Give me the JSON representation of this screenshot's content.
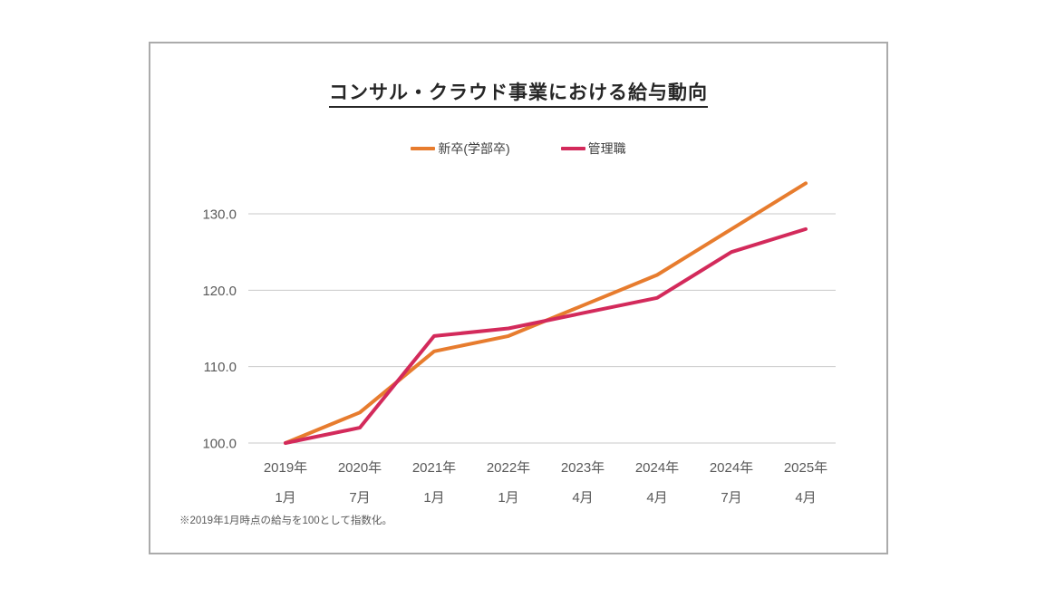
{
  "chart_data": {
    "type": "line",
    "title": "コンサル・クラウド事業における給与動向",
    "footnote": "※2019年1月時点の給与を100として指数化。",
    "categories": [
      [
        "2019年",
        "1月"
      ],
      [
        "2020年",
        "7月"
      ],
      [
        "2021年",
        "1月"
      ],
      [
        "2022年",
        "1月"
      ],
      [
        "2023年",
        "4月"
      ],
      [
        "2024年",
        "4月"
      ],
      [
        "2024年",
        "7月"
      ],
      [
        "2025年",
        "4月"
      ]
    ],
    "series": [
      {
        "name": "新卒(学部卒)",
        "color": "#e77c2e",
        "values": [
          100,
          104,
          112,
          114,
          118,
          122,
          128,
          134
        ]
      },
      {
        "name": "管理職",
        "color": "#d32a5b",
        "values": [
          100,
          102,
          114,
          115,
          117,
          119,
          125,
          128
        ]
      }
    ],
    "yticks": [
      100.0,
      110.0,
      120.0,
      130.0
    ],
    "ytick_labels": [
      "100.0",
      "110.0",
      "120.0",
      "130.0"
    ],
    "ylim": [
      100,
      135
    ],
    "grid": "horizontal",
    "legend_position": "top"
  }
}
